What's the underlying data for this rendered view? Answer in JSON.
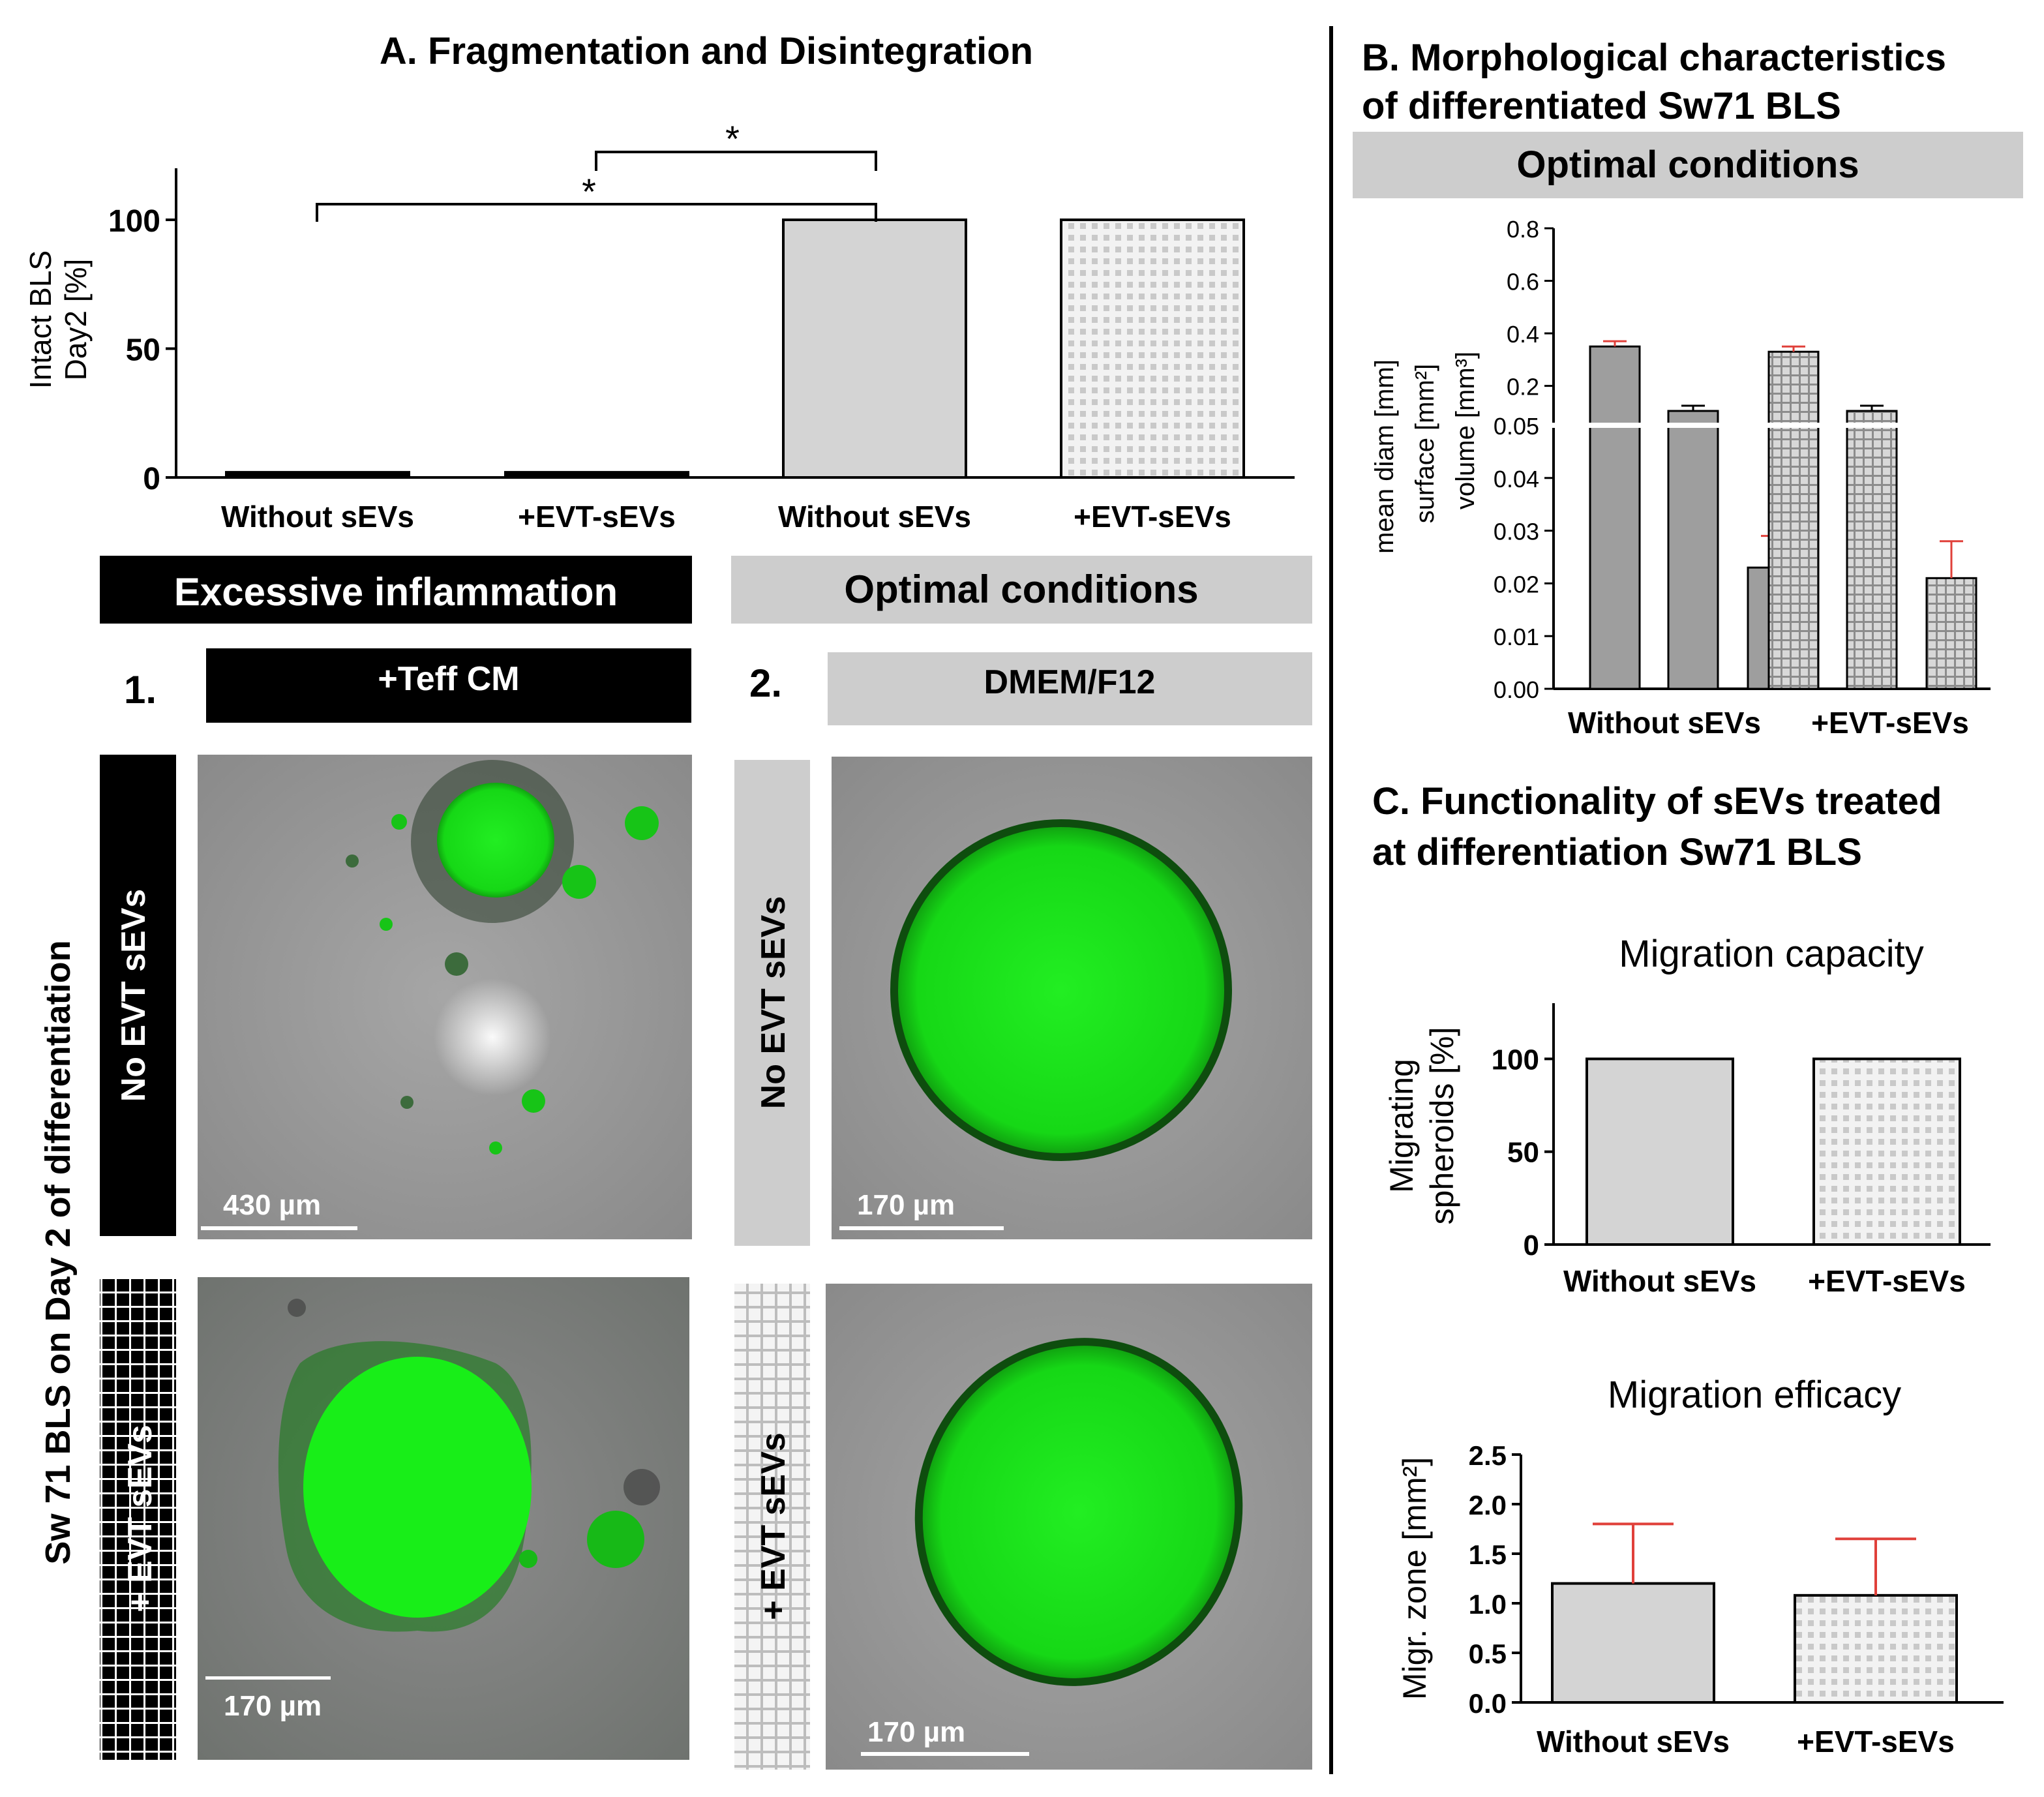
{
  "colors": {
    "black": "#000000",
    "bar_gray": "#d4d4d4",
    "bar_dark_gray": "#9e9e9e",
    "header_gray": "#cdcdcd",
    "error_red": "#e0403a",
    "fluorescent_green": "#19e619"
  },
  "panel_a": {
    "title": "A. Fragmentation and Disintegration",
    "sig_marks": [
      "*",
      "*"
    ],
    "header_left": "Excessive inflammation",
    "header_right": "Optimal conditions",
    "group1_number": "1.",
    "group1_label": "+Teff CM",
    "group2_number": "2.",
    "group2_label": "DMEM/F12",
    "row_label_top_left": "No EVT sEVs",
    "row_label_bottom_left": "+ EVT sEVs",
    "row_label_top_right": "No EVT sEVs",
    "row_label_bottom_right": "+ EVT sEVs",
    "side_label": "Sw 71 BLS on Day 2 of differentiation",
    "scale_bars": [
      "430 µm",
      "170 µm",
      "170 µm",
      "170 µm"
    ]
  },
  "panel_b": {
    "title_line1": "B. Morphological characteristics",
    "title_line2": "of differentiated Sw71 BLS",
    "header": "Optimal conditions"
  },
  "panel_c": {
    "title_line1": "C. Functionality of sEVs treated",
    "title_line2": "at differentiation Sw71 BLS"
  },
  "chart_data": [
    {
      "id": "A",
      "type": "bar",
      "title": "",
      "ylabel_lines": [
        "Intact BLS",
        "Day2 [%]"
      ],
      "categories": [
        "Without sEVs",
        "+EVT-sEVs",
        "Without sEVs",
        "+EVT-sEVs"
      ],
      "values": [
        2,
        2,
        100,
        100
      ],
      "patterns": [
        "black",
        "black-dashed",
        "gray",
        "gray-grid"
      ],
      "ylim": [
        0,
        120
      ],
      "yticks": [
        "0",
        "50",
        "100"
      ]
    },
    {
      "id": "B",
      "type": "bar",
      "ylabel_lines": [
        "mean diam [mm]",
        "surface [mm²]",
        "volume [mm³]"
      ],
      "categories": [
        "Without sEVs",
        "+EVT-sEVs"
      ],
      "series": [
        {
          "name": "mean diam [mm]",
          "values": [
            0.35,
            0.33
          ],
          "errors": [
            0.02,
            0.02
          ]
        },
        {
          "name": "surface [mm²]",
          "values": [
            0.05,
            0.05
          ],
          "errors": [
            0.001,
            0.001
          ]
        },
        {
          "name": "volume [mm³]",
          "values": [
            0.023,
            0.021
          ],
          "errors": [
            0.006,
            0.007
          ]
        }
      ],
      "ylim": [
        0,
        0.8
      ],
      "axis_break": 0.05,
      "yticks_lower": [
        "0.00",
        "0.01",
        "0.02",
        "0.03",
        "0.04",
        "0.05"
      ],
      "yticks_upper": [
        "0.2",
        "0.4",
        "0.6",
        "0.8"
      ]
    },
    {
      "id": "C1",
      "type": "bar",
      "title": "Migration capacity",
      "ylabel_lines": [
        "Migrating",
        "spheroids [%]"
      ],
      "categories": [
        "Without sEVs",
        "+EVT-sEVs"
      ],
      "values": [
        100,
        100
      ],
      "ylim": [
        0,
        130
      ],
      "yticks": [
        "0",
        "50",
        "100"
      ]
    },
    {
      "id": "C2",
      "type": "bar",
      "title": "Migration efficacy",
      "ylabel_lines": [
        "Migr. zone [mm²]"
      ],
      "categories": [
        "Without sEVs",
        "+EVT-sEVs"
      ],
      "values": [
        1.2,
        1.08
      ],
      "errors": [
        0.6,
        0.57
      ],
      "ylim": [
        0,
        2.5
      ],
      "yticks": [
        "0.0",
        "0.5",
        "1.0",
        "1.5",
        "2.0",
        "2.5"
      ]
    }
  ]
}
